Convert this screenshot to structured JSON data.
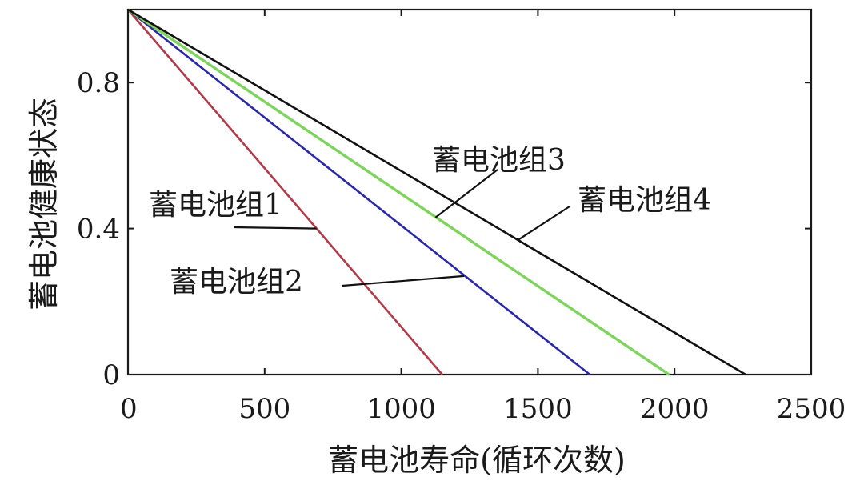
{
  "chart_data": {
    "type": "line",
    "title": "",
    "xlabel": "蓄电池寿命(循环次数)",
    "ylabel": "蓄电池健康状态",
    "xlim": [
      0,
      2500
    ],
    "ylim": [
      0,
      1.0
    ],
    "x_ticks": [
      0,
      500,
      1000,
      1500,
      2000,
      2500
    ],
    "x_tick_labels": [
      "0",
      "500",
      "1000",
      "1500",
      "2000",
      "2500"
    ],
    "y_ticks": [
      0,
      0.4,
      0.8
    ],
    "y_tick_labels": [
      "0",
      "0.4",
      "0.8"
    ],
    "grid": false,
    "series": [
      {
        "name": "蓄电池组1",
        "color": "#b03a48",
        "x": [
          0,
          1150
        ],
        "y": [
          1.0,
          0.0
        ],
        "label_anchor": [
          1150,
          0.0
        ],
        "label_point": [
          690,
          0.4
        ]
      },
      {
        "name": "蓄电池组2",
        "color": "#2828a8",
        "x": [
          0,
          1690
        ],
        "y": [
          1.0,
          0.0
        ],
        "label_anchor": [
          1690,
          0.0
        ],
        "label_point": [
          1230,
          0.27
        ]
      },
      {
        "name": "蓄电池组3",
        "color": "#7cd45a",
        "x": [
          0,
          1980
        ],
        "y": [
          1.0,
          0.0
        ],
        "label_anchor": [
          1980,
          0.0
        ],
        "label_point": [
          1125,
          0.43
        ]
      },
      {
        "name": "蓄电池组4",
        "color": "#111111",
        "x": [
          0,
          2260
        ],
        "y": [
          1.0,
          0.0
        ],
        "label_anchor": [
          2260,
          0.0
        ],
        "label_point": [
          1430,
          0.37
        ]
      }
    ]
  }
}
